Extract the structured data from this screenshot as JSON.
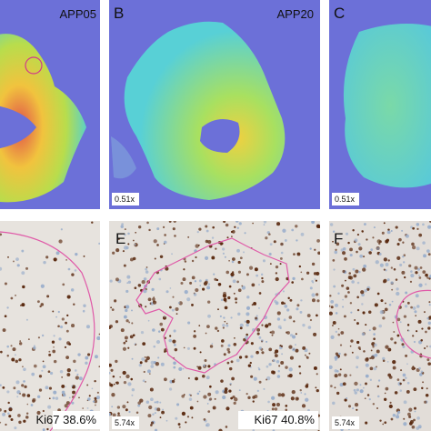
{
  "panels": [
    {
      "sample": "APP05"
    },
    {
      "letter": "B",
      "sample": "APP20",
      "magnification": "0.51x"
    },
    {
      "letter": "C",
      "magnification": "0.51x"
    },
    {
      "stain": "Ki67 38.6%"
    },
    {
      "letter": "E",
      "stain": "Ki67 40.8%",
      "magnification": "5.74x"
    },
    {
      "letter": "F",
      "magnification": "5.74x"
    }
  ]
}
